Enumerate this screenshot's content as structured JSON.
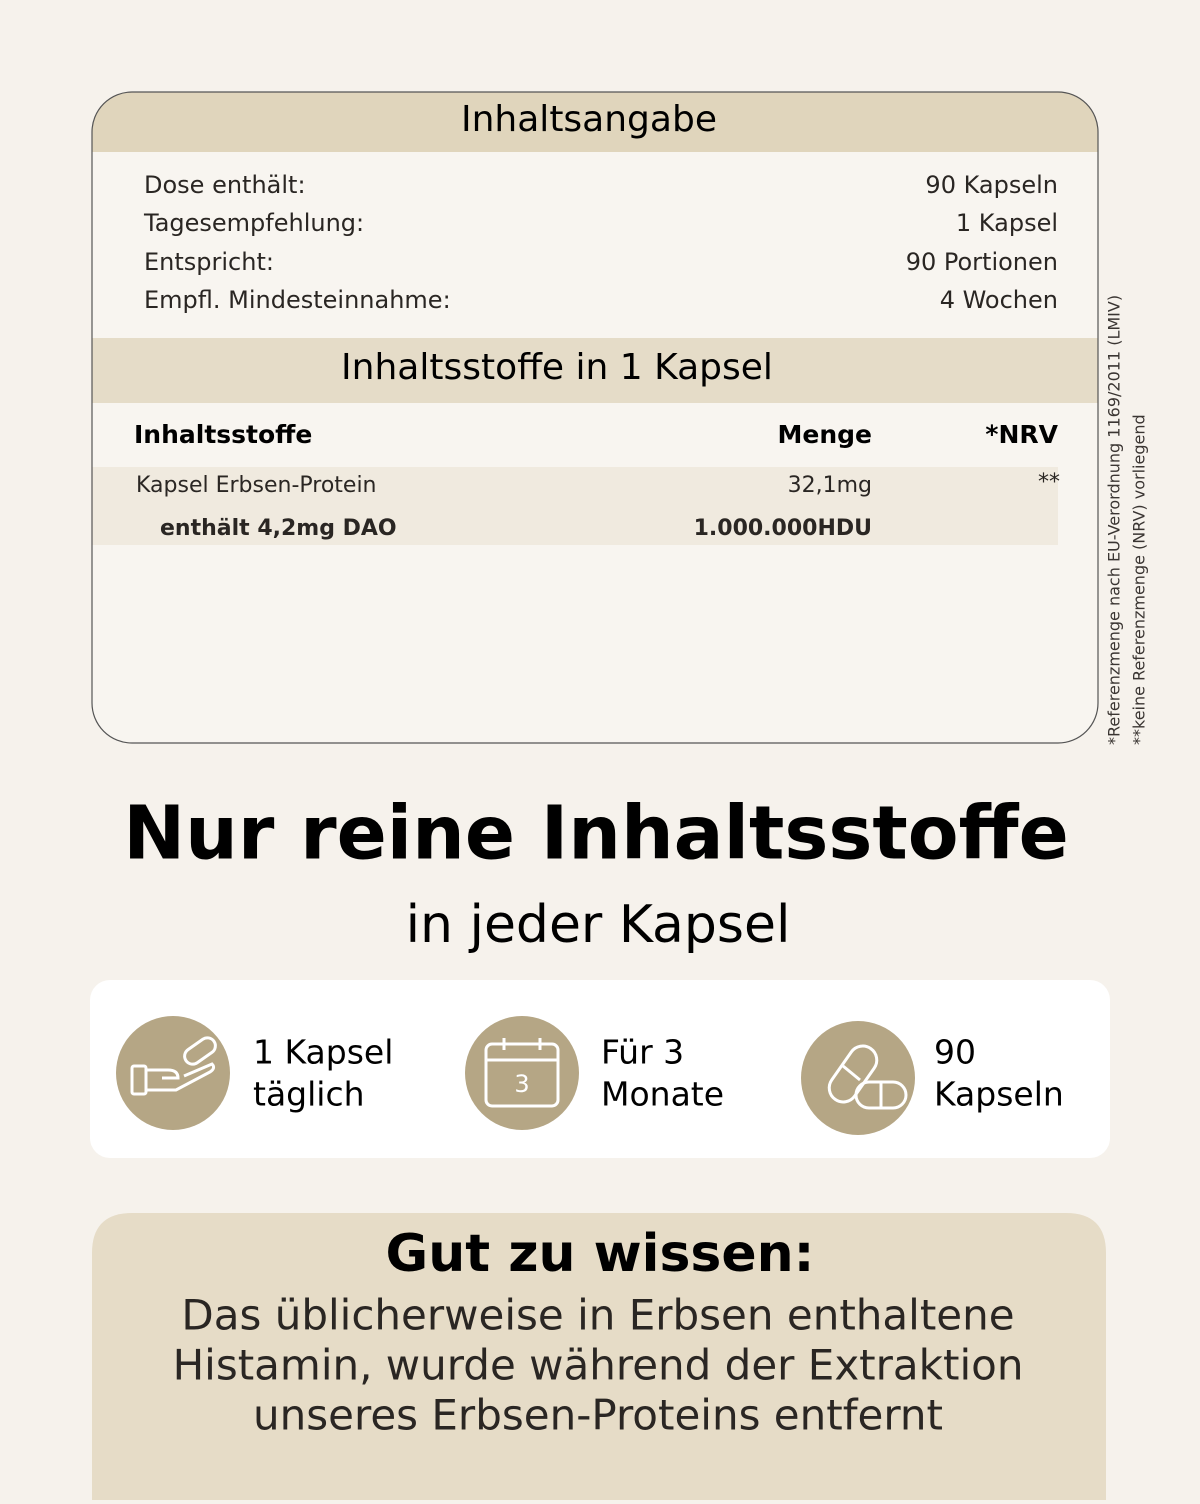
{
  "contents": {
    "title": "Inhaltsangabe",
    "rows": [
      [
        "Dose enthält:",
        "90 Kapseln"
      ],
      [
        "Tagesempfehlung:",
        "1 Kapsel"
      ],
      [
        "Entspricht:",
        "90 Portionen"
      ],
      [
        "Empfl. Mindesteinnahme:",
        "4 Wochen"
      ]
    ]
  },
  "ingredients": {
    "title": "Inhaltsstoffe in 1 Kapsel",
    "header": [
      "Inhaltsstoffe",
      "Menge",
      "*NRV"
    ],
    "rows": [
      [
        "Kapsel Erbsen-Protein",
        "32,1mg",
        "**"
      ],
      [
        "enthält 4,2mg DAO",
        "1.000.000HDU"
      ]
    ]
  },
  "footnotes": [
    "*Referenzmenge nach EU-Verordnung 1169/2011 (LMIV)",
    "**keine Referenzmenge (NRV) vorliegend"
  ],
  "headline": "Nur reine Inhaltsstoffe",
  "subheadline": "in jeder Kapsel",
  "features": [
    {
      "lines": [
        "1 Kapsel",
        "täglich"
      ]
    },
    {
      "lines": [
        "Für 3",
        "Monate"
      ],
      "icon_label": "3"
    },
    {
      "lines": [
        "90",
        "Kapseln"
      ]
    }
  ],
  "info": {
    "title": "Gut zu wissen:",
    "lines": [
      "Das üblicherweise in Erbsen enthaltene",
      "Histamin, wurde während der Extraktion",
      "unseres Erbsen-Proteins entfernt"
    ]
  }
}
